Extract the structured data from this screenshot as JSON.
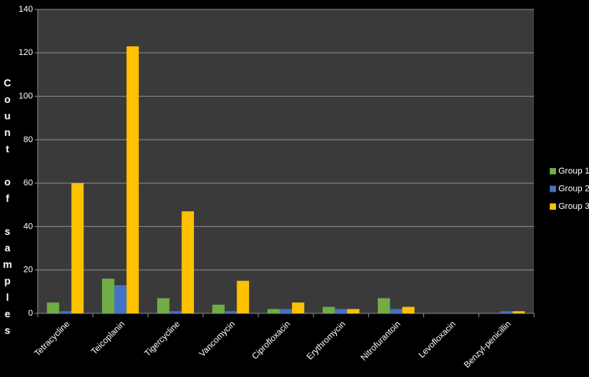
{
  "chart_data": {
    "type": "bar",
    "y_label": "Count of samples",
    "categories": [
      "Tetracycline",
      "Teicoplanin",
      "Tigercycline",
      "Vancomycin",
      "Ciprofloxacin",
      "Erythromycin",
      "Nitrofurantoin",
      "Levofloxacin",
      "Benzyl-penicillin"
    ],
    "series": [
      {
        "name": "Group 1",
        "color": "#70ad47",
        "values": [
          5,
          16,
          7,
          4,
          2,
          3,
          7,
          0,
          0
        ]
      },
      {
        "name": "Group 2",
        "color": "#4472c4",
        "values": [
          1,
          13,
          1,
          1,
          2,
          2,
          2,
          0,
          1
        ]
      },
      {
        "name": "Group 3",
        "color": "#ffc000",
        "values": [
          60,
          123,
          47,
          15,
          5,
          2,
          3,
          0,
          1
        ]
      }
    ],
    "ylim": [
      0,
      140
    ],
    "yticks": [
      0,
      20,
      40,
      60,
      80,
      100,
      120,
      140
    ],
    "grid": true,
    "legend": "right"
  }
}
